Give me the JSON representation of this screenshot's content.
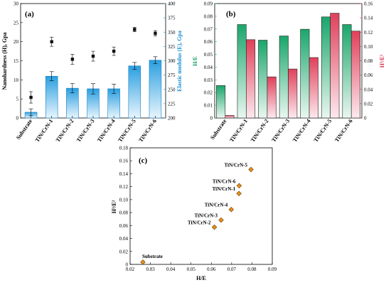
{
  "chart_data": [
    {
      "panel_label": "(a)",
      "type": "bar",
      "categories": [
        "Substrate",
        "TiN/CrN-1",
        "TiN/CrN-2",
        "TiN/CrN-3",
        "TiN/CrN-4",
        "TiN/CrN-5",
        "TiN/CrN-6"
      ],
      "ylabel": "Nanohardness (H), Gpa",
      "y2label": "Elastic modulus (E), Gpa",
      "ylim": [
        0,
        30
      ],
      "y2lim": [
        200,
        400
      ],
      "yticks": [
        "0",
        "5",
        "10",
        "15",
        "20",
        "25",
        "30"
      ],
      "y2ticks": [
        "200",
        "225",
        "250",
        "275",
        "300",
        "325",
        "350",
        "375",
        "400"
      ],
      "series": [
        {
          "axis": "left",
          "kind": "scatter",
          "values": [
            5.4,
            20.0,
            15.4,
            16.2,
            17.5,
            23.2,
            22.2
          ],
          "errors": [
            1.5,
            1.2,
            1.3,
            1.3,
            1.1,
            0.6,
            0.7
          ]
        },
        {
          "axis": "right",
          "kind": "bar",
          "values": [
            210,
            273,
            252,
            251,
            251,
            291,
            301
          ],
          "errors": [
            6,
            8,
            8,
            9,
            8,
            6,
            6
          ]
        }
      ],
      "colors": {
        "bar": "#2a9fe0",
        "bar_light": "#e8f5fd",
        "marker": "#111111"
      }
    },
    {
      "panel_label": "(b)",
      "type": "bar",
      "categories": [
        "Substrate",
        "TiN/CrN-1",
        "TiN/CrN-2",
        "TiN/CrN-3",
        "TiN/CrN-4",
        "TiN/CrN-5",
        "TiN/CrN-6"
      ],
      "ylabel": "H/E",
      "y2label": "H³/E²",
      "ylim": [
        0,
        0.09
      ],
      "y2lim": [
        0,
        0.16
      ],
      "yticks": [
        "0",
        "0.01",
        "0.02",
        "0.03",
        "0.04",
        "0.05",
        "0.06",
        "0.07",
        "0.08",
        "0.09"
      ],
      "y2ticks": [
        "0",
        "0.02",
        "0.04",
        "0.06",
        "0.08",
        "0.10",
        "0.12",
        "0.14",
        "0.16"
      ],
      "series": [
        {
          "axis": "left",
          "values": [
            0.0255,
            0.0735,
            0.0612,
            0.0645,
            0.0698,
            0.0795,
            0.0735
          ]
        },
        {
          "axis": "right",
          "values": [
            0.0035,
            0.1095,
            0.0575,
            0.0685,
            0.0845,
            0.1465,
            0.1215
          ]
        }
      ],
      "colors": {
        "left": "#1aa66b",
        "left_light": "#e9f7f0",
        "right": "#e0405a",
        "right_light": "#fde9ee",
        "left_axis": "#1a9e62",
        "right_axis": "#d6304e"
      }
    },
    {
      "panel_label": "(c)",
      "type": "scatter",
      "xlabel": "H/E",
      "ylabel": "H³/E²",
      "xlim": [
        0.02,
        0.09
      ],
      "ylim": [
        0,
        0.18
      ],
      "xticks": [
        "0.02",
        "0.03",
        "0.04",
        "0.05",
        "0.06",
        "0.07",
        "0.08",
        "0.09"
      ],
      "yticks": [
        "0",
        "0.02",
        "0.04",
        "0.06",
        "0.08",
        "0.10",
        "0.12",
        "0.14",
        "0.16",
        "0.18"
      ],
      "points": [
        {
          "label": "Substrate",
          "x": 0.0263,
          "y": 0.0035
        },
        {
          "label": "TiN/CrN-1",
          "x": 0.0736,
          "y": 0.1095
        },
        {
          "label": "TiN/CrN-2",
          "x": 0.0615,
          "y": 0.0575
        },
        {
          "label": "TiN/CrN-3",
          "x": 0.0648,
          "y": 0.0685
        },
        {
          "label": "TiN/CrN-4",
          "x": 0.0698,
          "y": 0.0848
        },
        {
          "label": "TiN/CrN-5",
          "x": 0.0795,
          "y": 0.1465
        },
        {
          "label": "TiN/CrN-6",
          "x": 0.0737,
          "y": 0.1215
        }
      ],
      "colors": {
        "marker": "#e8901c",
        "marker_edge": "#6b3a00"
      }
    }
  ]
}
